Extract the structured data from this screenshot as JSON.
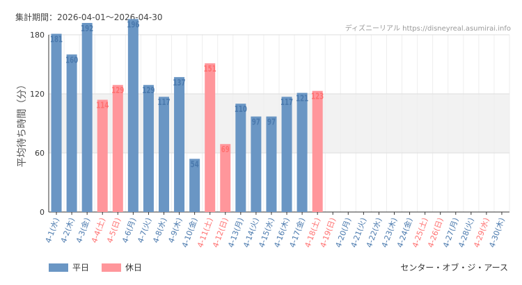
{
  "header": {
    "period_label": "集計期間：2026-04-01～2026-04-30",
    "credit": "ディズニーリアル https://disneyreal.asumirai.info"
  },
  "location": "センター・オブ・ジ・アース",
  "colors": {
    "weekday": "#6a96c4",
    "holiday": "#ff969b",
    "weekday_text": "#4a79ad",
    "holiday_text": "#ff7070",
    "band": "#f2f2f2",
    "grid": "#dddddd"
  },
  "chart_data": {
    "type": "bar",
    "title": "",
    "ylabel": "平均待ち時間（分）",
    "xlabel": "",
    "ylim": [
      0,
      180
    ],
    "yticks": [
      0,
      60,
      120,
      180
    ],
    "shaded_band": [
      60,
      120
    ],
    "legend": [
      {
        "name": "平日",
        "key": "weekday"
      },
      {
        "name": "休日",
        "key": "holiday"
      }
    ],
    "categories": [
      "4-1(水)",
      "4-2(木)",
      "4-3(金)",
      "4-4(土)",
      "4-5(日)",
      "4-6(月)",
      "4-7(火)",
      "4-8(水)",
      "4-9(木)",
      "4-10(金)",
      "4-11(土)",
      "4-12(日)",
      "4-13(月)",
      "4-14(火)",
      "4-15(水)",
      "4-16(木)",
      "4-17(金)",
      "4-18(土)",
      "4-19(日)",
      "4-20(月)",
      "4-21(火)",
      "4-22(水)",
      "4-23(木)",
      "4-24(金)",
      "4-25(土)",
      "4-26(日)",
      "4-27(月)",
      "4-28(火)",
      "4-29(水)",
      "4-30(木)"
    ],
    "day_type": [
      "weekday",
      "weekday",
      "weekday",
      "holiday",
      "holiday",
      "weekday",
      "weekday",
      "weekday",
      "weekday",
      "weekday",
      "holiday",
      "holiday",
      "weekday",
      "weekday",
      "weekday",
      "weekday",
      "weekday",
      "holiday",
      "holiday",
      "weekday",
      "weekday",
      "weekday",
      "weekday",
      "weekday",
      "holiday",
      "holiday",
      "weekday",
      "weekday",
      "holiday",
      "weekday"
    ],
    "values": [
      181,
      160,
      192,
      114,
      129,
      196,
      129,
      117,
      137,
      54,
      151,
      69,
      110,
      97,
      97,
      117,
      121,
      123,
      null,
      null,
      null,
      null,
      null,
      null,
      null,
      null,
      null,
      null,
      null,
      null
    ]
  }
}
